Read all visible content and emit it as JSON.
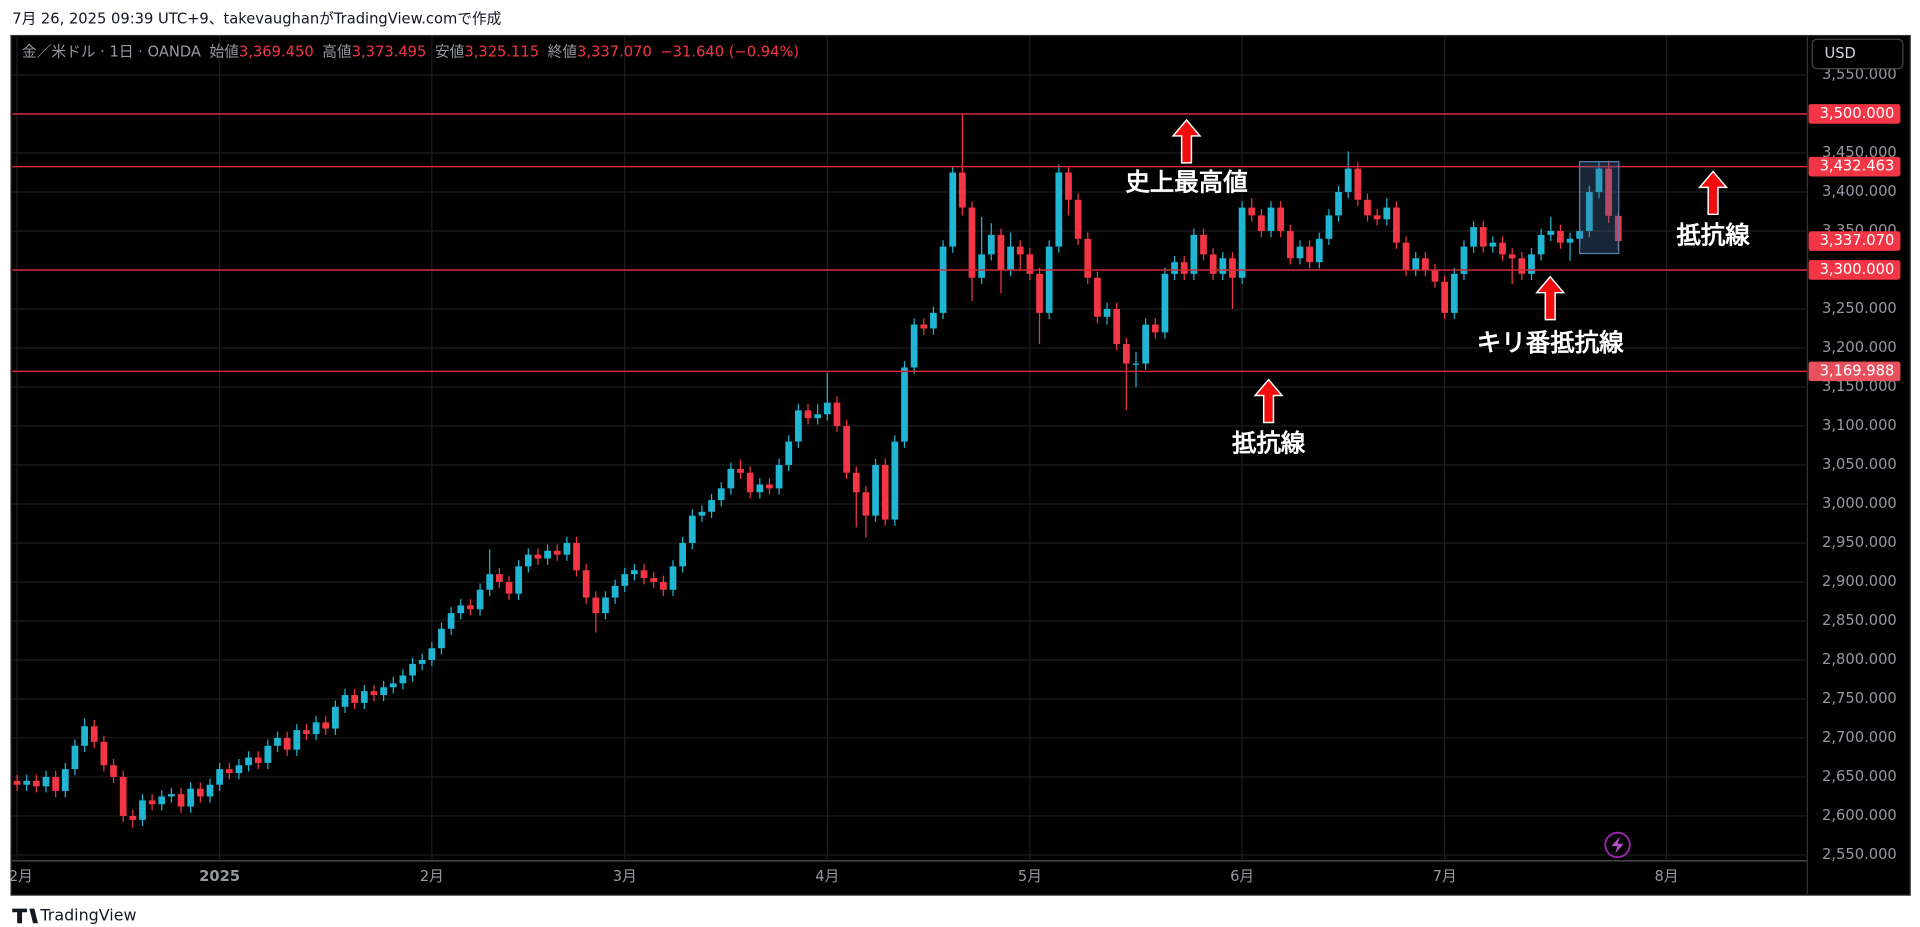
{
  "header": {
    "caption": "7月 26, 2025 09:39 UTC+9、takevaughanがTradingView.comで作成"
  },
  "footer": {
    "brand": "TradingView"
  },
  "legend": {
    "symbol": "金／米ドル · 1日 · OANDA",
    "items": [
      {
        "label": "始値",
        "value": "3,369.450"
      },
      {
        "label": "高値",
        "value": "3,373.495"
      },
      {
        "label": "安値",
        "value": "3,325.115"
      },
      {
        "label": "終値",
        "value": "3,337.070"
      }
    ],
    "change": "−31.640 (−0.94%)"
  },
  "currency": "USD",
  "chart_data": {
    "type": "candlestick",
    "up_color": "#1fb5d3",
    "down_color": "#f23645",
    "grid": true,
    "xlim": [
      -0.5,
      185.6
    ],
    "xticks": [
      {
        "value": 0,
        "label": "2月"
      },
      {
        "value": 21,
        "label": "2025"
      },
      {
        "value": 43,
        "label": "2月"
      },
      {
        "value": 63,
        "label": "3月"
      },
      {
        "value": 84,
        "label": "4月"
      },
      {
        "value": 105,
        "label": "5月"
      },
      {
        "value": 127,
        "label": "6月"
      },
      {
        "value": 148,
        "label": "7月"
      },
      {
        "value": 171,
        "label": "8月"
      }
    ],
    "ylim": [
      2544,
      3599
    ],
    "yticks": [
      {
        "value": 2550,
        "label": "2,550.000"
      },
      {
        "value": 2600,
        "label": "2,600.000"
      },
      {
        "value": 2650,
        "label": "2,650.000"
      },
      {
        "value": 2700,
        "label": "2,700.000"
      },
      {
        "value": 2750,
        "label": "2,750.000"
      },
      {
        "value": 2800,
        "label": "2,800.000"
      },
      {
        "value": 2850,
        "label": "2,850.000"
      },
      {
        "value": 2900,
        "label": "2,900.000"
      },
      {
        "value": 2950,
        "label": "2,950.000"
      },
      {
        "value": 3000,
        "label": "3,000.000"
      },
      {
        "value": 3050,
        "label": "3,050.000"
      },
      {
        "value": 3100,
        "label": "3,100.000"
      },
      {
        "value": 3150,
        "label": "3,150.000"
      },
      {
        "value": 3200,
        "label": "3,200.000"
      },
      {
        "value": 3250,
        "label": "3,250.000"
      },
      {
        "value": 3300,
        "label": "3,300.000"
      },
      {
        "value": 3350,
        "label": "3,350.000"
      },
      {
        "value": 3400,
        "label": "3,400.000"
      },
      {
        "value": 3450,
        "label": "3,450.000"
      },
      {
        "value": 3500,
        "label": "3,500.000"
      },
      {
        "value": 3550,
        "label": "3,550.000"
      }
    ],
    "hlines": [
      {
        "value": 3500,
        "label": "3,500.000"
      },
      {
        "value": 3432.463,
        "label": "3,432.463"
      },
      {
        "value": 3300,
        "label": "3,300.000"
      },
      {
        "value": 3169.988,
        "label": "3,169.988"
      }
    ],
    "last_price": {
      "value": 3337.07,
      "label": "3,337.070"
    },
    "annotations": [
      "史上最高値",
      "抵抗線",
      "キリ番抵抗線",
      "抵抗線"
    ],
    "candles": [
      [
        2645,
        2653,
        2632,
        2640
      ],
      [
        2640,
        2653,
        2632,
        2645
      ],
      [
        2645,
        2653,
        2630,
        2638
      ],
      [
        2638,
        2658,
        2630,
        2650
      ],
      [
        2650,
        2658,
        2624,
        2632
      ],
      [
        2632,
        2668,
        2624,
        2660
      ],
      [
        2660,
        2698,
        2652,
        2690
      ],
      [
        2690,
        2725,
        2682,
        2715
      ],
      [
        2715,
        2723,
        2687,
        2695
      ],
      [
        2695,
        2703,
        2657,
        2665
      ],
      [
        2665,
        2673,
        2642,
        2650
      ],
      [
        2650,
        2658,
        2592,
        2600
      ],
      [
        2600,
        2608,
        2585,
        2595
      ],
      [
        2595,
        2628,
        2587,
        2620
      ],
      [
        2620,
        2628,
        2607,
        2615
      ],
      [
        2615,
        2633,
        2607,
        2625
      ],
      [
        2625,
        2636,
        2617,
        2628
      ],
      [
        2628,
        2636,
        2604,
        2612
      ],
      [
        2612,
        2643,
        2604,
        2635
      ],
      [
        2635,
        2643,
        2617,
        2625
      ],
      [
        2625,
        2648,
        2617,
        2640
      ],
      [
        2640,
        2668,
        2632,
        2660
      ],
      [
        2660,
        2668,
        2647,
        2655
      ],
      [
        2655,
        2673,
        2647,
        2665
      ],
      [
        2665,
        2683,
        2657,
        2675
      ],
      [
        2675,
        2683,
        2660,
        2668
      ],
      [
        2668,
        2698,
        2660,
        2690
      ],
      [
        2690,
        2708,
        2682,
        2700
      ],
      [
        2700,
        2708,
        2677,
        2685
      ],
      [
        2685,
        2718,
        2677,
        2710
      ],
      [
        2710,
        2718,
        2697,
        2705
      ],
      [
        2705,
        2728,
        2697,
        2720
      ],
      [
        2720,
        2728,
        2704,
        2712
      ],
      [
        2712,
        2748,
        2704,
        2740
      ],
      [
        2740,
        2763,
        2732,
        2755
      ],
      [
        2755,
        2763,
        2737,
        2745
      ],
      [
        2745,
        2768,
        2737,
        2760
      ],
      [
        2760,
        2768,
        2747,
        2755
      ],
      [
        2755,
        2773,
        2747,
        2765
      ],
      [
        2765,
        2778,
        2757,
        2770
      ],
      [
        2770,
        2788,
        2762,
        2780
      ],
      [
        2780,
        2803,
        2772,
        2795
      ],
      [
        2795,
        2808,
        2787,
        2800
      ],
      [
        2800,
        2823,
        2792,
        2815
      ],
      [
        2815,
        2848,
        2807,
        2840
      ],
      [
        2840,
        2868,
        2832,
        2860
      ],
      [
        2860,
        2878,
        2852,
        2870
      ],
      [
        2870,
        2878,
        2857,
        2865
      ],
      [
        2865,
        2898,
        2857,
        2890
      ],
      [
        2890,
        2942,
        2882,
        2910
      ],
      [
        2910,
        2918,
        2892,
        2900
      ],
      [
        2900,
        2908,
        2877,
        2885
      ],
      [
        2885,
        2928,
        2877,
        2920
      ],
      [
        2920,
        2943,
        2912,
        2935
      ],
      [
        2935,
        2943,
        2922,
        2930
      ],
      [
        2930,
        2948,
        2922,
        2940
      ],
      [
        2940,
        2948,
        2927,
        2935
      ],
      [
        2935,
        2958,
        2927,
        2950
      ],
      [
        2950,
        2958,
        2907,
        2915
      ],
      [
        2915,
        2923,
        2872,
        2880
      ],
      [
        2880,
        2888,
        2835,
        2860
      ],
      [
        2860,
        2888,
        2852,
        2880
      ],
      [
        2880,
        2903,
        2872,
        2895
      ],
      [
        2895,
        2918,
        2887,
        2910
      ],
      [
        2910,
        2923,
        2902,
        2915
      ],
      [
        2915,
        2923,
        2897,
        2905
      ],
      [
        2905,
        2913,
        2892,
        2900
      ],
      [
        2900,
        2908,
        2882,
        2890
      ],
      [
        2890,
        2928,
        2882,
        2920
      ],
      [
        2920,
        2958,
        2912,
        2950
      ],
      [
        2950,
        2993,
        2942,
        2985
      ],
      [
        2985,
        2998,
        2977,
        2990
      ],
      [
        2990,
        3013,
        2982,
        3005
      ],
      [
        3005,
        3028,
        2997,
        3020
      ],
      [
        3020,
        3053,
        3012,
        3045
      ],
      [
        3045,
        3057,
        3032,
        3040
      ],
      [
        3040,
        3048,
        3007,
        3015
      ],
      [
        3015,
        3033,
        3007,
        3025
      ],
      [
        3025,
        3033,
        3012,
        3020
      ],
      [
        3020,
        3058,
        3012,
        3050
      ],
      [
        3050,
        3088,
        3042,
        3080
      ],
      [
        3080,
        3128,
        3072,
        3120
      ],
      [
        3120,
        3128,
        3102,
        3110
      ],
      [
        3110,
        3128,
        3102,
        3115
      ],
      [
        3115,
        3168,
        3107,
        3130
      ],
      [
        3130,
        3138,
        3092,
        3100
      ],
      [
        3100,
        3108,
        3032,
        3040
      ],
      [
        3040,
        3048,
        2970,
        3015
      ],
      [
        3015,
        3023,
        2957,
        2985
      ],
      [
        2985,
        3058,
        2977,
        3050
      ],
      [
        3050,
        3058,
        2972,
        2980
      ],
      [
        2980,
        3088,
        2972,
        3080
      ],
      [
        3080,
        3183,
        3072,
        3175
      ],
      [
        3175,
        3238,
        3167,
        3230
      ],
      [
        3230,
        3238,
        3217,
        3225
      ],
      [
        3225,
        3253,
        3217,
        3245
      ],
      [
        3245,
        3338,
        3237,
        3330
      ],
      [
        3330,
        3433,
        3322,
        3425
      ],
      [
        3425,
        3500,
        3370,
        3380
      ],
      [
        3380,
        3388,
        3260,
        3290
      ],
      [
        3290,
        3368,
        3282,
        3320
      ],
      [
        3320,
        3360,
        3312,
        3345
      ],
      [
        3345,
        3353,
        3270,
        3300
      ],
      [
        3300,
        3348,
        3292,
        3330
      ],
      [
        3330,
        3338,
        3300,
        3320
      ],
      [
        3320,
        3328,
        3287,
        3295
      ],
      [
        3295,
        3303,
        3205,
        3245
      ],
      [
        3245,
        3338,
        3237,
        3330
      ],
      [
        3330,
        3435,
        3322,
        3425
      ],
      [
        3425,
        3433,
        3370,
        3390
      ],
      [
        3390,
        3398,
        3332,
        3340
      ],
      [
        3340,
        3348,
        3282,
        3290
      ],
      [
        3290,
        3298,
        3232,
        3240
      ],
      [
        3240,
        3258,
        3230,
        3250
      ],
      [
        3250,
        3258,
        3197,
        3205
      ],
      [
        3205,
        3213,
        3120,
        3180
      ],
      [
        3180,
        3195,
        3150,
        3180
      ],
      [
        3180,
        3238,
        3172,
        3230
      ],
      [
        3230,
        3238,
        3212,
        3220
      ],
      [
        3220,
        3303,
        3212,
        3295
      ],
      [
        3295,
        3318,
        3287,
        3310
      ],
      [
        3310,
        3318,
        3287,
        3295
      ],
      [
        3295,
        3353,
        3287,
        3345
      ],
      [
        3345,
        3353,
        3312,
        3320
      ],
      [
        3320,
        3328,
        3287,
        3295
      ],
      [
        3295,
        3323,
        3287,
        3315
      ],
      [
        3315,
        3323,
        3250,
        3290
      ],
      [
        3290,
        3388,
        3282,
        3380
      ],
      [
        3380,
        3392,
        3362,
        3370
      ],
      [
        3370,
        3378,
        3342,
        3350
      ],
      [
        3350,
        3388,
        3342,
        3380
      ],
      [
        3380,
        3388,
        3342,
        3350
      ],
      [
        3350,
        3358,
        3307,
        3315
      ],
      [
        3315,
        3338,
        3307,
        3330
      ],
      [
        3330,
        3338,
        3302,
        3310
      ],
      [
        3310,
        3348,
        3302,
        3340
      ],
      [
        3340,
        3378,
        3332,
        3370
      ],
      [
        3370,
        3408,
        3362,
        3400
      ],
      [
        3400,
        3452,
        3392,
        3430
      ],
      [
        3430,
        3438,
        3382,
        3390
      ],
      [
        3390,
        3398,
        3362,
        3370
      ],
      [
        3370,
        3378,
        3357,
        3365
      ],
      [
        3365,
        3392,
        3357,
        3380
      ],
      [
        3380,
        3388,
        3327,
        3335
      ],
      [
        3335,
        3343,
        3292,
        3300
      ],
      [
        3300,
        3323,
        3292,
        3315
      ],
      [
        3315,
        3323,
        3292,
        3300
      ],
      [
        3300,
        3308,
        3277,
        3285
      ],
      [
        3285,
        3293,
        3237,
        3245
      ],
      [
        3245,
        3303,
        3237,
        3295
      ],
      [
        3295,
        3338,
        3287,
        3330
      ],
      [
        3330,
        3363,
        3322,
        3355
      ],
      [
        3355,
        3363,
        3322,
        3330
      ],
      [
        3330,
        3343,
        3322,
        3335
      ],
      [
        3335,
        3343,
        3312,
        3320
      ],
      [
        3320,
        3328,
        3282,
        3315
      ],
      [
        3315,
        3323,
        3287,
        3295
      ],
      [
        3295,
        3328,
        3287,
        3320
      ],
      [
        3320,
        3353,
        3312,
        3345
      ],
      [
        3345,
        3368,
        3337,
        3350
      ],
      [
        3350,
        3358,
        3327,
        3335
      ],
      [
        3335,
        3348,
        3312,
        3340
      ],
      [
        3340,
        3358,
        3332,
        3350
      ],
      [
        3350,
        3408,
        3342,
        3400
      ],
      [
        3400,
        3438,
        3392,
        3430
      ],
      [
        3430,
        3440,
        3360,
        3369.45
      ],
      [
        3369.45,
        3373.495,
        3325.115,
        3337.07
      ]
    ]
  }
}
